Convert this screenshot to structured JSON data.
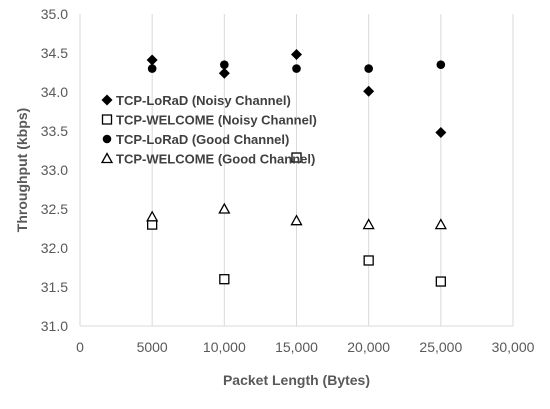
{
  "chart_data": {
    "type": "scatter",
    "xlabel": "Packet Length (Bytes)",
    "ylabel": "Throughput (kbps)",
    "xlim": [
      0,
      30000
    ],
    "ylim": [
      31.0,
      35.0
    ],
    "x_ticks": [
      0,
      5000,
      10000,
      15000,
      20000,
      25000,
      30000
    ],
    "x_tick_labels": [
      "0",
      "5000",
      "10,000",
      "15,000",
      "20,000",
      "25,000",
      "30,000"
    ],
    "y_ticks": [
      31.0,
      31.5,
      32.0,
      32.5,
      33.0,
      33.5,
      34.0,
      34.5,
      35.0
    ],
    "y_tick_labels": [
      "31.0",
      "31.5",
      "32.0",
      "32.5",
      "33.0",
      "33.5",
      "34.0",
      "34.5",
      "35.0"
    ],
    "grid": "vertical",
    "legend_position": "inside-left",
    "series": [
      {
        "name": "TCP-LoRaD (Noisy Channel)",
        "marker": "diamond-filled",
        "color": "#000000",
        "x": [
          5000,
          10000,
          15000,
          20000,
          25000
        ],
        "y": [
          34.41,
          34.24,
          34.48,
          34.01,
          33.48
        ]
      },
      {
        "name": "TCP-WELCOME (Noisy Channel)",
        "marker": "square-open",
        "color": "#000000",
        "x": [
          5000,
          10000,
          15000,
          20000,
          25000
        ],
        "y": [
          32.3,
          31.6,
          33.16,
          31.84,
          31.57
        ]
      },
      {
        "name": "TCP-LoRaD (Good Channel)",
        "marker": "circle-filled",
        "color": "#000000",
        "x": [
          5000,
          10000,
          15000,
          20000,
          25000
        ],
        "y": [
          34.3,
          34.35,
          34.3,
          34.3,
          34.35
        ]
      },
      {
        "name": "TCP-WELCOME (Good Channel)",
        "marker": "triangle-open",
        "color": "#000000",
        "x": [
          5000,
          10000,
          15000,
          20000,
          25000
        ],
        "y": [
          32.4,
          32.5,
          32.35,
          32.3,
          32.3
        ]
      }
    ]
  },
  "colors": {
    "grid": "#d9d9d9",
    "axis_text": "#595959",
    "marker": "#000000"
  }
}
